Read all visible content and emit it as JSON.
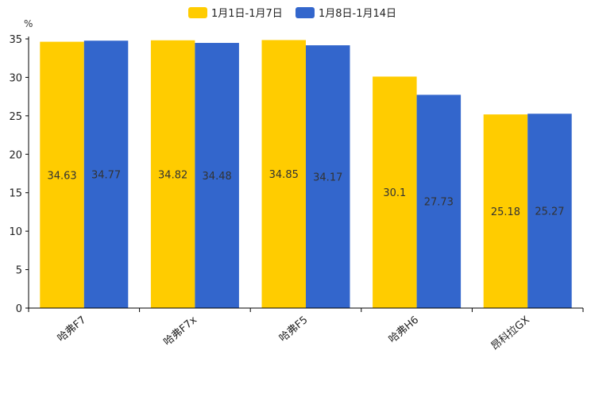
{
  "chart_data": {
    "type": "bar",
    "title": "",
    "ylabel": "%",
    "xlabel": "",
    "ylim": [
      0,
      35
    ],
    "yticks": [
      0,
      5,
      10,
      15,
      20,
      25,
      30,
      35
    ],
    "categories": [
      "哈弗F7",
      "哈弗F7x",
      "哈弗F5",
      "哈弗H6",
      "昂科拉GX"
    ],
    "series": [
      {
        "name": "1月1日-1月7日",
        "color": "#ffcc00",
        "values": [
          34.63,
          34.82,
          34.85,
          30.1,
          25.18
        ]
      },
      {
        "name": "1月8日-1月14日",
        "color": "#3366cc",
        "values": [
          34.77,
          34.48,
          34.17,
          27.73,
          25.27
        ]
      }
    ],
    "legend_position": "top-center",
    "grid": false
  }
}
